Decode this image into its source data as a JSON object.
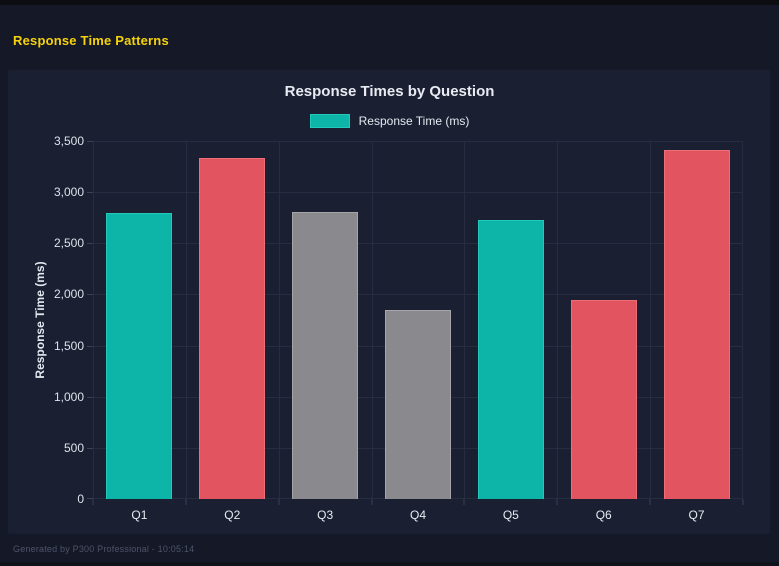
{
  "page": {
    "title": "Response Time Patterns",
    "footer": "Generated by P300 Professional - 10:05:14"
  },
  "colors": {
    "page_background": "#151927",
    "card_background": "#1a1f31",
    "page_title_accent": "#f6d20a",
    "teal": "#0db4a8",
    "red": "#e25460",
    "gray": "#8a8a8e"
  },
  "chart_data": {
    "type": "bar",
    "title": "Response Times by Question",
    "legend_label": "Response Time (ms)",
    "legend_position": "top",
    "legend_color": "#0db4a8",
    "legend_border_color": "#23cabc",
    "xlabel": "",
    "ylabel": "Response Time (ms)",
    "categories": [
      "Q1",
      "Q2",
      "Q3",
      "Q4",
      "Q5",
      "Q6",
      "Q7"
    ],
    "values": [
      2800,
      3330,
      2810,
      1850,
      2730,
      1950,
      3410
    ],
    "bar_colors": [
      "#0db4a8",
      "#e25460",
      "#8a8a8e",
      "#8a8a8e",
      "#0db4a8",
      "#e25460",
      "#e25460"
    ],
    "bar_border_colors": [
      "#23cabc",
      "#ee6d78",
      "#a6a6aa",
      "#a6a6aa",
      "#23cabc",
      "#ee6d78",
      "#ee6d78"
    ],
    "ylim": [
      0,
      3500
    ],
    "yticks": [
      0,
      500,
      1000,
      1500,
      2000,
      2500,
      3000,
      3500
    ],
    "ytick_labels": [
      "0",
      "500",
      "1,000",
      "1,500",
      "2,000",
      "2,500",
      "3,000",
      "3,500"
    ],
    "grid": true
  }
}
